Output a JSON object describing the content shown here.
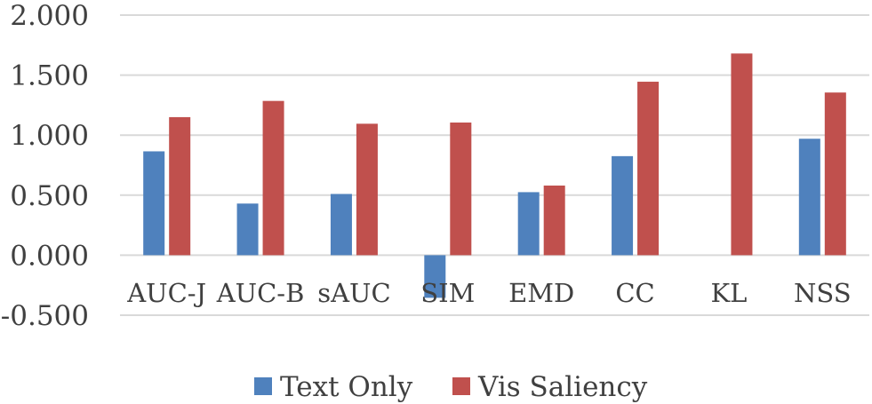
{
  "chart_data": {
    "type": "bar",
    "categories": [
      "AUC-J",
      "AUC-B",
      "sAUC",
      "SIM",
      "EMD",
      "CC",
      "KL",
      "NSS"
    ],
    "series": [
      {
        "name": "Text Only",
        "color": "#4f81bd",
        "values": [
          0.865,
          0.43,
          0.51,
          -0.355,
          0.525,
          0.825,
          0.0,
          0.97
        ]
      },
      {
        "name": "Vis Saliency",
        "color": "#c0504d",
        "values": [
          1.15,
          1.285,
          1.095,
          1.105,
          0.58,
          1.445,
          1.68,
          1.355
        ]
      }
    ],
    "y_ticks": [
      "2.000",
      "1.500",
      "1.000",
      "0.500",
      "0.000",
      "-0.500"
    ],
    "ylim": [
      -0.5,
      2.0
    ],
    "grid": true,
    "legend_position": "bottom-center"
  }
}
